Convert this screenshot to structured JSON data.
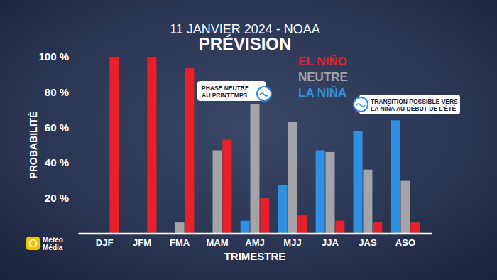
{
  "chart_data": {
    "type": "bar",
    "title": "11 JANVIER 2024 - NOAA",
    "subtitle": "PRÉVISION",
    "x_label": "TRIMESTRE",
    "y_label": "PROBABILITÉ",
    "categories": [
      "DJF",
      "JFM",
      "FMA",
      "MAM",
      "AMJ",
      "MJJ",
      "JJA",
      "JAS",
      "ASO"
    ],
    "series": [
      {
        "name": "EL NIÑO",
        "color": "#e8202a",
        "values": [
          100,
          100,
          94,
          53,
          20,
          10,
          7,
          6,
          6
        ]
      },
      {
        "name": "NEUTRE",
        "color": "#a3a3a8",
        "values": [
          0,
          0,
          6,
          47,
          73,
          63,
          46,
          36,
          30
        ]
      },
      {
        "name": "LA NIÑA",
        "color": "#2f8fe0",
        "values": [
          0,
          0,
          0,
          0,
          7,
          27,
          47,
          58,
          64
        ]
      }
    ],
    "ylim": [
      0,
      100
    ],
    "yticks": [
      {
        "value": 20,
        "label": "20 %"
      },
      {
        "value": 40,
        "label": "40 %"
      },
      {
        "value": 60,
        "label": "60 %"
      },
      {
        "value": 80,
        "label": "80 %"
      },
      {
        "value": 100,
        "label": "100 %"
      }
    ],
    "grid": false,
    "legend": "top-right",
    "data_labels": false,
    "annotations": [
      {
        "lines": [
          "PHASE NEUTRE",
          "AU PRINTEMPS"
        ]
      },
      {
        "lines": [
          "TRANSITION POSSIBLE VERS",
          "LA NIÑA AU DÉBUT DE L'ÉTÉ"
        ]
      }
    ],
    "source": [
      "Météo",
      "Média"
    ]
  }
}
